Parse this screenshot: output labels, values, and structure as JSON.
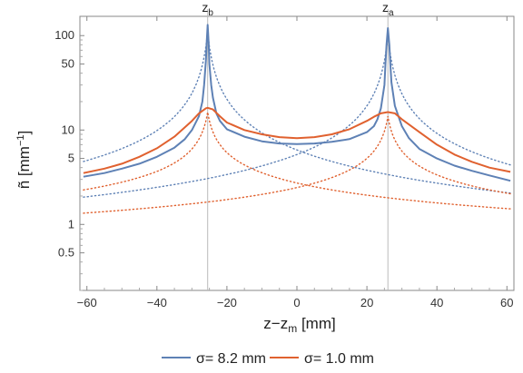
{
  "chart_data": {
    "type": "line",
    "title": "",
    "xlabel": "z−z",
    "xlabel_sub": "m",
    "xlabel_unit": " [mm]",
    "ylabel": "ñ [mm",
    "ylabel_sup": "−1",
    "ylabel_end": "]",
    "xlim": [
      -62,
      62
    ],
    "ylim": [
      0.2,
      160
    ],
    "yscale": "log",
    "xticks": [
      -60,
      -40,
      -20,
      0,
      20,
      40,
      60
    ],
    "xtick_labels": [
      "−60",
      "−40",
      "−20",
      "0",
      "20",
      "40",
      "60"
    ],
    "yticks": [
      0.5,
      1,
      5,
      10,
      50,
      100
    ],
    "ytick_labels": [
      "0.5",
      "1",
      "5",
      "10",
      "50",
      "100"
    ],
    "grid": false,
    "legend_position": "bottom",
    "annotations": [
      {
        "label": "z",
        "sub": "b",
        "x": -25.5
      },
      {
        "label": "z",
        "sub": "a",
        "x": 26
      }
    ],
    "series": [
      {
        "name": "σ= 8.2 mm",
        "color": "#5e81b5",
        "style": "solid",
        "x": [
          -61,
          -55,
          -50,
          -45,
          -40,
          -35,
          -32,
          -30,
          -28,
          -27,
          -26.5,
          -26,
          -25.8,
          -25.5,
          -25.2,
          -25,
          -24.5,
          -24,
          -23,
          -22,
          -20,
          -15,
          -10,
          -5,
          0,
          5,
          10,
          15,
          20,
          22,
          23,
          24,
          25,
          25.3,
          25.6,
          26,
          26.4,
          26.7,
          27,
          28,
          30,
          32,
          35,
          40,
          45,
          50,
          55,
          61
        ],
        "y": [
          3.2,
          3.5,
          3.9,
          4.4,
          5.2,
          6.5,
          8.0,
          10.0,
          14.0,
          20.0,
          30.0,
          55.0,
          80.0,
          130.0,
          80.0,
          50.0,
          30.0,
          22.0,
          15.0,
          12.5,
          10.2,
          8.5,
          7.6,
          7.2,
          7.1,
          7.2,
          7.5,
          8.0,
          9.5,
          11.0,
          13.0,
          17.0,
          30.0,
          50.0,
          80.0,
          120.0,
          80.0,
          50.0,
          32.0,
          18.0,
          11.0,
          8.2,
          6.3,
          5.0,
          4.2,
          3.7,
          3.3,
          2.9
        ]
      },
      {
        "name": "σ= 1.0 mm",
        "color": "#e0612f",
        "style": "solid",
        "x": [
          -61,
          -55,
          -50,
          -45,
          -40,
          -35,
          -30,
          -28,
          -26,
          -25.5,
          -24,
          -22,
          -20,
          -15,
          -10,
          -5,
          0,
          5,
          10,
          15,
          20,
          22,
          24,
          26,
          28,
          30,
          35,
          40,
          45,
          50,
          55,
          61
        ],
        "y": [
          3.5,
          3.9,
          4.4,
          5.2,
          6.4,
          8.5,
          12.5,
          15.0,
          17.0,
          17.2,
          16.5,
          14.0,
          12.0,
          10.0,
          9.0,
          8.4,
          8.2,
          8.4,
          9.0,
          10.2,
          12.5,
          13.8,
          15.0,
          15.5,
          15.0,
          13.0,
          9.5,
          7.0,
          5.5,
          4.6,
          4.0,
          3.6
        ]
      }
    ],
    "components": [
      {
        "color": "#5e81b5",
        "style": "dotted",
        "x0": -25.5,
        "peak": 110,
        "decay": 0.55,
        "floor": 0.2
      },
      {
        "color": "#5e81b5",
        "style": "dotted",
        "x0": 26,
        "peak": 100,
        "decay": 0.55,
        "floor": 0.2
      },
      {
        "color": "#e0612f",
        "style": "dotted",
        "x0": -25.5,
        "peak": 15.5,
        "decay": 0.33,
        "floor": 1.2
      },
      {
        "color": "#e0612f",
        "style": "dotted",
        "x0": 26,
        "peak": 14.0,
        "decay": 0.33,
        "floor": 1.2
      }
    ]
  }
}
